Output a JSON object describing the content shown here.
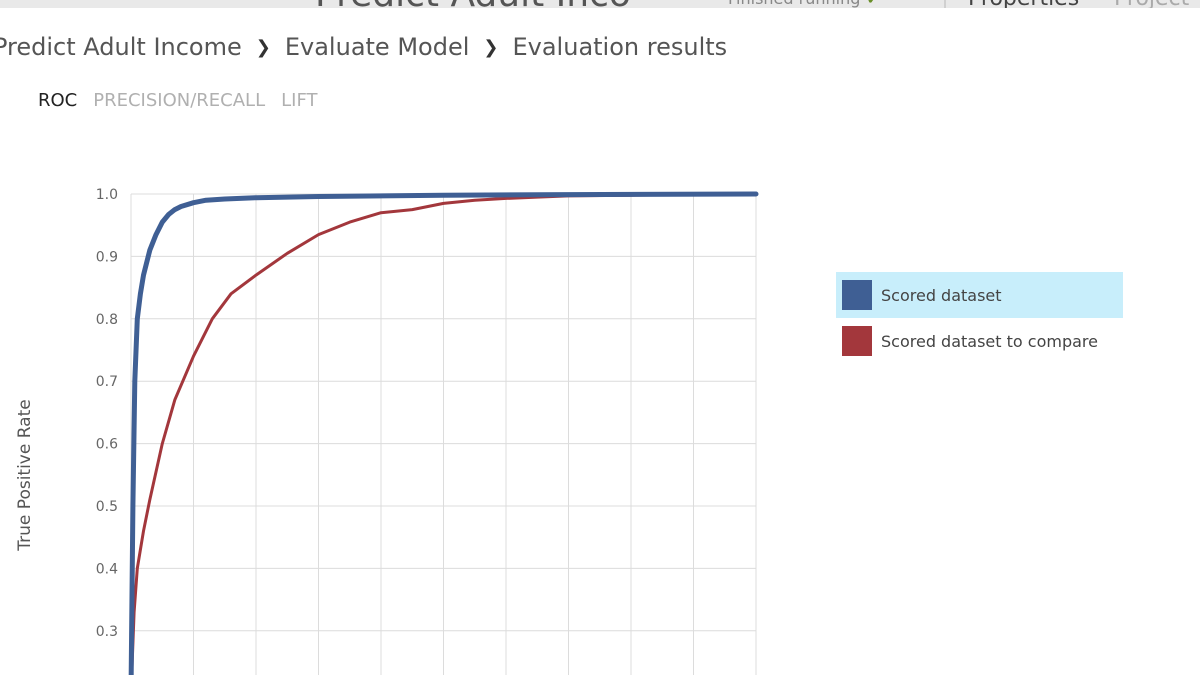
{
  "header": {
    "title": "Predict Adult Inco",
    "status": "Finished running",
    "status_icon": "check-icon",
    "tabs": [
      "Properties",
      "Project"
    ]
  },
  "breadcrumb": [
    "Predict Adult Income",
    "Evaluate Model",
    "Evaluation results"
  ],
  "view_tabs": [
    {
      "label": "ROC",
      "active": true
    },
    {
      "label": "PRECISION/RECALL",
      "active": false
    },
    {
      "label": "LIFT",
      "active": false
    }
  ],
  "legend": {
    "items": [
      {
        "label": "Scored dataset",
        "color": "#3f5f94",
        "selected": true
      },
      {
        "label": "Scored dataset to compare",
        "color": "#a3373c",
        "selected": false
      }
    ]
  },
  "chart_data": {
    "type": "line",
    "ylabel": "True Positive Rate",
    "xlabel": "",
    "xlim": [
      0,
      1
    ],
    "ylim": [
      0.2,
      1.0
    ],
    "y_ticks": [
      "1.0",
      "0.9",
      "0.8",
      "0.7",
      "0.6",
      "0.5",
      "0.4",
      "0.3"
    ],
    "grid": true,
    "legend_position": "right",
    "series": [
      {
        "name": "Scored dataset",
        "color": "#3f5f94",
        "x": [
          0.0,
          0.003,
          0.006,
          0.01,
          0.015,
          0.02,
          0.03,
          0.04,
          0.05,
          0.06,
          0.07,
          0.08,
          0.1,
          0.12,
          0.15,
          0.2,
          0.3,
          0.5,
          0.7,
          1.0
        ],
        "y": [
          0.2,
          0.5,
          0.7,
          0.8,
          0.84,
          0.87,
          0.91,
          0.935,
          0.955,
          0.967,
          0.975,
          0.98,
          0.986,
          0.99,
          0.992,
          0.994,
          0.996,
          0.998,
          0.999,
          1.0
        ]
      },
      {
        "name": "Scored dataset to compare",
        "color": "#a3373c",
        "x": [
          0.0,
          0.005,
          0.01,
          0.02,
          0.03,
          0.05,
          0.07,
          0.1,
          0.13,
          0.16,
          0.2,
          0.25,
          0.3,
          0.35,
          0.4,
          0.45,
          0.5,
          0.55,
          0.6,
          0.65,
          0.7,
          0.8,
          0.9,
          1.0
        ],
        "y": [
          0.2,
          0.33,
          0.4,
          0.46,
          0.51,
          0.6,
          0.67,
          0.74,
          0.8,
          0.84,
          0.87,
          0.905,
          0.935,
          0.955,
          0.97,
          0.975,
          0.985,
          0.99,
          0.993,
          0.995,
          0.997,
          0.998,
          0.999,
          1.0
        ]
      }
    ]
  }
}
